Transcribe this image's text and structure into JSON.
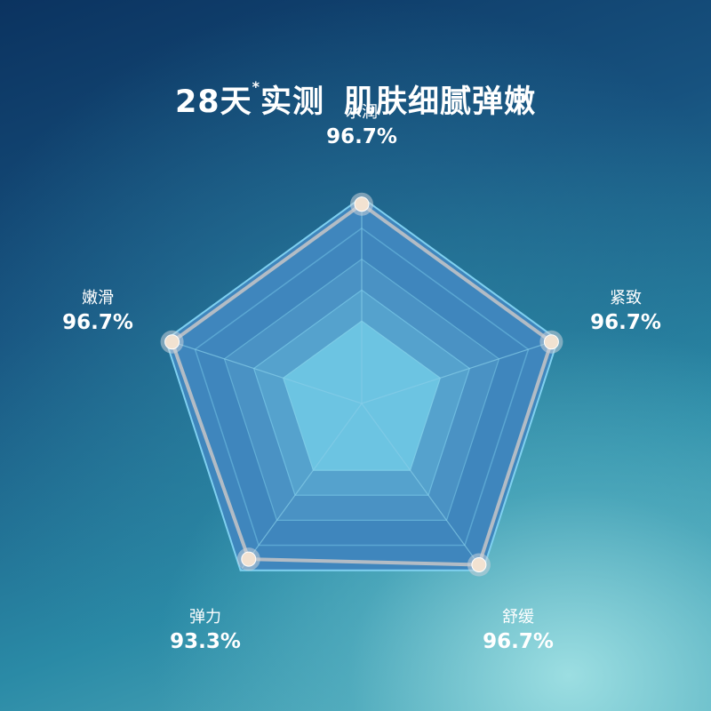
{
  "title": {
    "part1": "28天",
    "mark": "*",
    "part2": "实测",
    "part3": "肌肤细腻弹嫩"
  },
  "chart_data": {
    "type": "radar",
    "title": "28天*实测 肌肤细腻弹嫩",
    "categories": [
      "水润",
      "紧致",
      "舒缓",
      "弹力",
      "嫩滑"
    ],
    "values": [
      96.7,
      96.7,
      96.7,
      93.3,
      96.7
    ],
    "value_labels": [
      "96.7%",
      "96.7%",
      "96.7%",
      "93.3%",
      "96.7%"
    ],
    "unit": "%",
    "range": [
      0,
      100
    ],
    "colors": {
      "line": "#b3bcc5",
      "point_fill": "#f2e2d1",
      "outer_border": "#7fd0f0"
    }
  }
}
